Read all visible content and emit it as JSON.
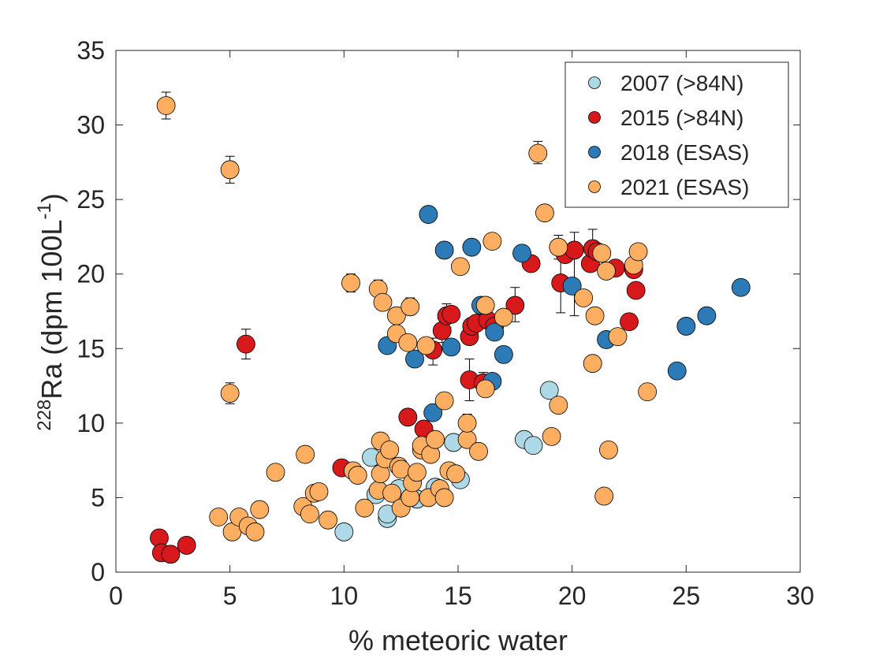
{
  "chart_data": {
    "type": "scatter",
    "xlabel": "% meteoric water",
    "ylabel_superscript": "228",
    "ylabel_main": "Ra (dpm 100L",
    "ylabel_exponent": "-1",
    "ylabel_close": ")",
    "xlim": [
      0,
      30
    ],
    "ylim": [
      0,
      35
    ],
    "xticks": [
      "0",
      "5",
      "10",
      "15",
      "20",
      "25",
      "30"
    ],
    "yticks": [
      "0",
      "5",
      "10",
      "15",
      "20",
      "25",
      "30",
      "35"
    ],
    "grid": false,
    "legend_position": "top-right",
    "series": [
      {
        "name": "2007 (>84N)",
        "color": "#add8e6",
        "points": [
          [
            10.0,
            2.7
          ],
          [
            11.9,
            3.6
          ],
          [
            11.9,
            3.9
          ],
          [
            11.4,
            5.2
          ],
          [
            11.2,
            7.7
          ],
          [
            13.2,
            4.9
          ],
          [
            14.8,
            8.7
          ],
          [
            15.1,
            6.2
          ],
          [
            17.9,
            8.9
          ],
          [
            18.3,
            8.5
          ],
          [
            19.0,
            12.2
          ],
          [
            12.4,
            5.6
          ],
          [
            14.0,
            5.7
          ]
        ]
      },
      {
        "name": "2015 (>84N)",
        "color": "#d7191c",
        "points": [
          [
            1.9,
            2.3
          ],
          [
            2.0,
            1.3
          ],
          [
            2.4,
            1.2
          ],
          [
            3.1,
            1.8
          ],
          [
            5.7,
            15.3
          ],
          [
            9.9,
            7.0
          ],
          [
            12.8,
            10.4
          ],
          [
            13.5,
            9.6
          ],
          [
            13.9,
            14.9
          ],
          [
            14.3,
            16.2
          ],
          [
            14.5,
            17.2
          ],
          [
            14.7,
            17.3
          ],
          [
            15.5,
            15.8
          ],
          [
            15.5,
            12.9
          ],
          [
            15.6,
            16.5
          ],
          [
            15.8,
            16.7
          ],
          [
            16.1,
            12.7
          ],
          [
            16.3,
            16.9
          ],
          [
            16.6,
            16.5
          ],
          [
            17.5,
            17.9
          ],
          [
            18.2,
            20.7
          ],
          [
            19.5,
            19.4
          ],
          [
            19.7,
            21.3
          ],
          [
            20.1,
            21.6
          ],
          [
            20.8,
            20.7
          ],
          [
            20.9,
            21.7
          ],
          [
            21.1,
            21.5
          ],
          [
            21.9,
            20.4
          ],
          [
            22.5,
            16.8
          ],
          [
            22.7,
            20.3
          ],
          [
            22.8,
            18.9
          ]
        ]
      },
      {
        "name": "2018 (ESAS)",
        "color": "#2c7bb6",
        "points": [
          [
            11.9,
            15.2
          ],
          [
            13.1,
            14.3
          ],
          [
            13.7,
            24.0
          ],
          [
            13.9,
            10.7
          ],
          [
            14.4,
            21.6
          ],
          [
            14.7,
            15.1
          ],
          [
            15.6,
            21.8
          ],
          [
            16.0,
            17.9
          ],
          [
            16.5,
            12.8
          ],
          [
            16.6,
            16.1
          ],
          [
            17.0,
            14.6
          ],
          [
            17.8,
            21.4
          ],
          [
            20.0,
            19.2
          ],
          [
            21.5,
            15.6
          ],
          [
            24.6,
            13.5
          ],
          [
            25.0,
            16.5
          ],
          [
            25.9,
            17.2
          ],
          [
            27.4,
            19.1
          ]
        ]
      },
      {
        "name": "2021 (ESAS)",
        "color": "#fdae61",
        "points": [
          [
            2.2,
            31.3
          ],
          [
            5.0,
            27.0
          ],
          [
            5.0,
            12.0
          ],
          [
            4.5,
            3.7
          ],
          [
            5.1,
            2.7
          ],
          [
            5.4,
            3.7
          ],
          [
            5.8,
            3.1
          ],
          [
            6.1,
            2.7
          ],
          [
            6.3,
            4.2
          ],
          [
            7.0,
            6.7
          ],
          [
            8.2,
            4.4
          ],
          [
            8.3,
            7.9
          ],
          [
            8.5,
            3.9
          ],
          [
            8.7,
            5.3
          ],
          [
            8.9,
            5.4
          ],
          [
            9.3,
            3.5
          ],
          [
            10.3,
            19.4
          ],
          [
            10.4,
            6.8
          ],
          [
            10.6,
            6.5
          ],
          [
            10.9,
            4.3
          ],
          [
            11.5,
            19.0
          ],
          [
            11.6,
            8.8
          ],
          [
            11.7,
            18.1
          ],
          [
            11.5,
            5.5
          ],
          [
            11.6,
            6.6
          ],
          [
            11.8,
            7.6
          ],
          [
            12.0,
            8.2
          ],
          [
            12.1,
            5.3
          ],
          [
            12.3,
            17.2
          ],
          [
            12.3,
            16.0
          ],
          [
            12.4,
            7.1
          ],
          [
            12.5,
            6.9
          ],
          [
            12.5,
            4.3
          ],
          [
            12.8,
            15.4
          ],
          [
            12.9,
            17.8
          ],
          [
            12.9,
            5.0
          ],
          [
            13.0,
            6.0
          ],
          [
            13.2,
            6.7
          ],
          [
            13.4,
            8.2
          ],
          [
            13.4,
            8.5
          ],
          [
            13.6,
            15.2
          ],
          [
            13.7,
            5.0
          ],
          [
            13.8,
            7.9
          ],
          [
            14.0,
            8.9
          ],
          [
            14.2,
            5.6
          ],
          [
            14.4,
            5.0
          ],
          [
            14.4,
            11.5
          ],
          [
            14.6,
            6.8
          ],
          [
            14.9,
            6.6
          ],
          [
            15.1,
            20.5
          ],
          [
            15.4,
            8.9
          ],
          [
            15.4,
            10.0
          ],
          [
            15.9,
            8.1
          ],
          [
            16.2,
            12.3
          ],
          [
            16.2,
            17.9
          ],
          [
            16.5,
            22.2
          ],
          [
            17.0,
            17.1
          ],
          [
            18.5,
            28.1
          ],
          [
            18.8,
            24.1
          ],
          [
            19.1,
            9.1
          ],
          [
            19.4,
            11.2
          ],
          [
            19.4,
            21.8
          ],
          [
            20.5,
            18.4
          ],
          [
            20.9,
            14.0
          ],
          [
            21.0,
            17.2
          ],
          [
            21.3,
            21.4
          ],
          [
            21.4,
            5.1
          ],
          [
            21.5,
            20.2
          ],
          [
            21.6,
            8.2
          ],
          [
            22.0,
            15.8
          ],
          [
            22.7,
            20.6
          ],
          [
            22.9,
            21.5
          ],
          [
            23.3,
            12.1
          ]
        ]
      }
    ],
    "error_bars": [
      {
        "series": "2021 (ESAS)",
        "x": 2.2,
        "y": 31.3,
        "lo": 30.4,
        "hi": 32.2
      },
      {
        "series": "2021 (ESAS)",
        "x": 5.0,
        "y": 27.0,
        "lo": 26.1,
        "hi": 27.9
      },
      {
        "series": "2021 (ESAS)",
        "x": 5.0,
        "y": 12.0,
        "lo": 11.3,
        "hi": 12.7
      },
      {
        "series": "2021 (ESAS)",
        "x": 10.3,
        "y": 19.4,
        "lo": 18.8,
        "hi": 20.0
      },
      {
        "series": "2021 (ESAS)",
        "x": 11.5,
        "y": 19.0,
        "lo": 18.5,
        "hi": 19.6
      },
      {
        "series": "2021 (ESAS)",
        "x": 12.9,
        "y": 17.8,
        "lo": 17.3,
        "hi": 18.4
      },
      {
        "series": "2015 (>84N)",
        "x": 5.7,
        "y": 15.3,
        "lo": 14.3,
        "hi": 16.3
      },
      {
        "series": "2015 (>84N)",
        "x": 13.9,
        "y": 14.9,
        "lo": 13.9,
        "hi": 15.7
      },
      {
        "series": "2015 (>84N)",
        "x": 14.3,
        "y": 16.2,
        "lo": 15.4,
        "hi": 17.0
      },
      {
        "series": "2015 (>84N)",
        "x": 14.5,
        "y": 17.2,
        "lo": 16.4,
        "hi": 18.0
      },
      {
        "series": "2015 (>84N)",
        "x": 15.5,
        "y": 12.9,
        "lo": 11.5,
        "hi": 14.3
      },
      {
        "series": "2021 (ESAS)",
        "x": 15.4,
        "y": 10.0,
        "lo": 9.4,
        "hi": 10.6
      },
      {
        "series": "2015 (>84N)",
        "x": 16.1,
        "y": 12.7,
        "lo": 12.0,
        "hi": 13.4
      },
      {
        "series": "2015 (>84N)",
        "x": 17.5,
        "y": 17.9,
        "lo": 16.8,
        "hi": 19.1
      },
      {
        "series": "2021 (ESAS)",
        "x": 18.5,
        "y": 28.1,
        "lo": 27.4,
        "hi": 28.9
      },
      {
        "series": "2015 (>84N)",
        "x": 19.5,
        "y": 19.4,
        "lo": 17.4,
        "hi": 21.4
      },
      {
        "series": "2015 (>84N)",
        "x": 20.1,
        "y": 21.6,
        "lo": 17.2,
        "hi": 22.8
      },
      {
        "series": "2015 (>84N)",
        "x": 20.9,
        "y": 21.7,
        "lo": 20.5,
        "hi": 23.0
      },
      {
        "series": "2021 (ESAS)",
        "x": 19.4,
        "y": 21.8,
        "lo": 21.0,
        "hi": 22.6
      }
    ]
  }
}
